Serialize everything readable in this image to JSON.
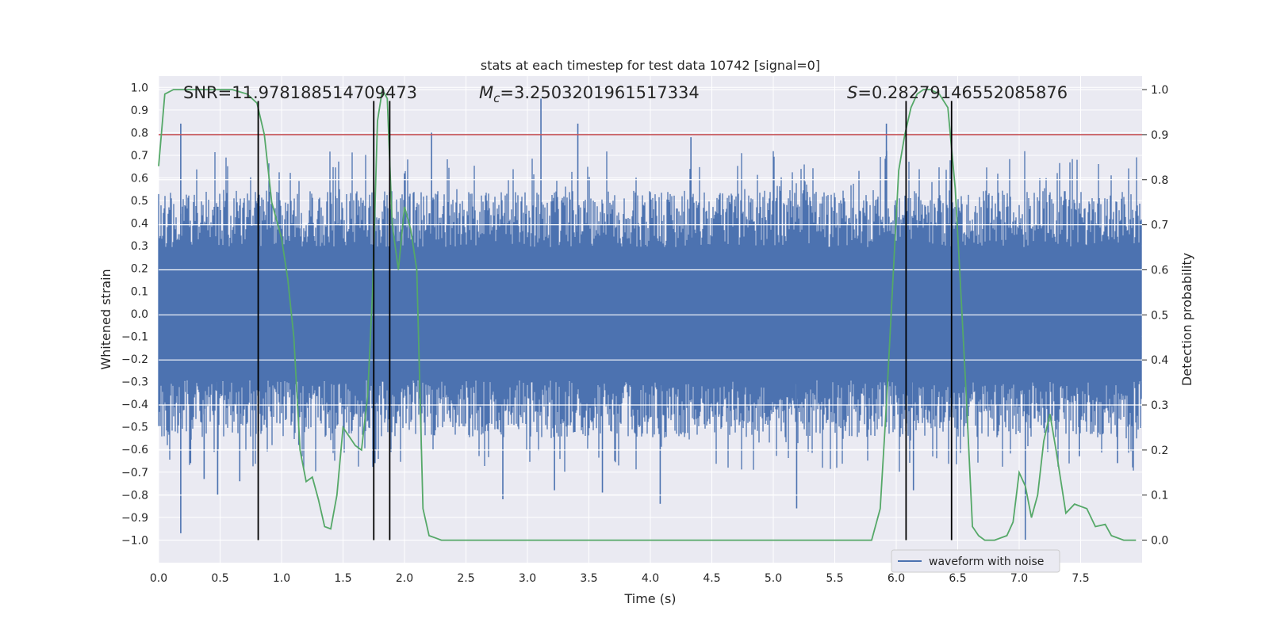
{
  "chart_data": {
    "type": "line",
    "title": "stats at each timestep for test data 10742 [signal=0]",
    "xlabel": "Time (s)",
    "ylabel": "Whitened strain",
    "ylabel_right": "Detection probability",
    "xlim": [
      0.0,
      8.0
    ],
    "ylim": [
      -1.1,
      1.05
    ],
    "ylim_right": [
      -0.05,
      1.03
    ],
    "x_ticks": [
      "0.0",
      "0.5",
      "1.0",
      "1.5",
      "2.0",
      "2.5",
      "3.0",
      "3.5",
      "4.0",
      "4.5",
      "5.0",
      "5.5",
      "6.0",
      "6.5",
      "7.0",
      "7.5"
    ],
    "y_ticks": [
      "1.0",
      "0.9",
      "0.8",
      "0.7",
      "0.6",
      "0.5",
      "0.4",
      "0.3",
      "0.2",
      "0.1",
      "0.0",
      "-0.1",
      "-0.2",
      "-0.3",
      "-0.4",
      "-0.5",
      "-0.6",
      "-0.7",
      "-0.8",
      "-0.9",
      "-1.0"
    ],
    "y_right_ticks": [
      "1.0",
      "0.9",
      "0.8",
      "0.7",
      "0.6",
      "0.5",
      "0.4",
      "0.3",
      "0.2",
      "0.1",
      "0.0"
    ],
    "annotations": {
      "snr": "SNR=11.978188514709473",
      "mc_symbol": "M",
      "mc_sub": "c",
      "mc_value": "=3.2503201961517334",
      "s_symbol": "S",
      "s_value": "=0.28279146552085876"
    },
    "legend": {
      "label": "waveform with noise",
      "location": "lower-right"
    },
    "threshold": {
      "value": 0.9,
      "axis": "right",
      "color": "#c44e52"
    },
    "vertical_lines": [
      0.81,
      1.75,
      1.88,
      6.08,
      6.45
    ],
    "vertical_line_range": [
      -1.0,
      0.94
    ],
    "waveform": {
      "name": "waveform with noise",
      "color": "#4c72b0",
      "typical_amplitude": 0.42,
      "spikes": [
        {
          "x": 0.18,
          "y": 0.84
        },
        {
          "x": 0.18,
          "y": -0.97
        },
        {
          "x": 0.26,
          "y": -0.66
        },
        {
          "x": 0.37,
          "y": -0.73
        },
        {
          "x": 0.48,
          "y": -0.8
        },
        {
          "x": 0.66,
          "y": -0.74
        },
        {
          "x": 1.14,
          "y": -0.58
        },
        {
          "x": 1.44,
          "y": 0.52
        },
        {
          "x": 1.75,
          "y": 0.82
        },
        {
          "x": 1.76,
          "y": -0.66
        },
        {
          "x": 2.0,
          "y": 0.62
        },
        {
          "x": 2.22,
          "y": 0.8
        },
        {
          "x": 2.8,
          "y": -0.82
        },
        {
          "x": 3.11,
          "y": 0.95
        },
        {
          "x": 3.22,
          "y": -0.78
        },
        {
          "x": 3.41,
          "y": 0.84
        },
        {
          "x": 3.61,
          "y": -0.79
        },
        {
          "x": 4.08,
          "y": -0.84
        },
        {
          "x": 4.33,
          "y": 0.78
        },
        {
          "x": 5.19,
          "y": -0.86
        },
        {
          "x": 5.92,
          "y": 0.84
        },
        {
          "x": 6.14,
          "y": -0.78
        },
        {
          "x": 7.05,
          "y": -1.0
        },
        {
          "x": 7.49,
          "y": -0.63
        },
        {
          "x": 7.8,
          "y": -0.66
        }
      ]
    },
    "detection_probability": {
      "name": "detection probability",
      "color": "#55a868",
      "axis": "right",
      "x": [
        0.0,
        0.05,
        0.12,
        0.2,
        0.3,
        0.45,
        0.6,
        0.72,
        0.8,
        0.86,
        0.92,
        1.0,
        1.05,
        1.1,
        1.15,
        1.2,
        1.25,
        1.3,
        1.35,
        1.4,
        1.45,
        1.5,
        1.55,
        1.6,
        1.65,
        1.7,
        1.74,
        1.78,
        1.82,
        1.86,
        1.9,
        1.95,
        2.0,
        2.05,
        2.1,
        2.15,
        2.2,
        2.25,
        2.3,
        2.4,
        2.5,
        2.6,
        2.7,
        2.8,
        2.9,
        3.0,
        3.2,
        3.4,
        3.6,
        3.8,
        4.0,
        4.2,
        4.4,
        4.6,
        4.8,
        5.0,
        5.2,
        5.4,
        5.6,
        5.8,
        5.87,
        5.92,
        5.97,
        6.02,
        6.07,
        6.12,
        6.17,
        6.22,
        6.28,
        6.35,
        6.42,
        6.48,
        6.52,
        6.57,
        6.62,
        6.67,
        6.72,
        6.8,
        6.9,
        6.95,
        7.0,
        7.05,
        7.1,
        7.15,
        7.2,
        7.25,
        7.3,
        7.38,
        7.45,
        7.55,
        7.62,
        7.7,
        7.75,
        7.85,
        7.95
      ],
      "y": [
        0.83,
        0.99,
        1.0,
        1.0,
        1.0,
        1.0,
        1.0,
        0.99,
        0.97,
        0.9,
        0.75,
        0.67,
        0.58,
        0.45,
        0.2,
        0.13,
        0.14,
        0.09,
        0.03,
        0.025,
        0.1,
        0.25,
        0.23,
        0.21,
        0.2,
        0.32,
        0.55,
        0.93,
        1.0,
        0.98,
        0.7,
        0.6,
        0.74,
        0.69,
        0.6,
        0.07,
        0.01,
        0.005,
        0.0,
        0.0,
        0.0,
        0.0,
        0.0,
        0.0,
        0.0,
        0.0,
        0.0,
        0.0,
        0.0,
        0.0,
        0.0,
        0.0,
        0.0,
        0.0,
        0.0,
        0.0,
        0.0,
        0.0,
        0.0,
        0.0,
        0.07,
        0.3,
        0.56,
        0.82,
        0.9,
        0.96,
        0.99,
        1.0,
        1.0,
        0.99,
        0.96,
        0.78,
        0.58,
        0.32,
        0.03,
        0.01,
        0.0,
        0.0,
        0.01,
        0.04,
        0.15,
        0.12,
        0.05,
        0.1,
        0.22,
        0.28,
        0.2,
        0.06,
        0.08,
        0.07,
        0.03,
        0.035,
        0.01,
        0.0,
        0.0
      ]
    }
  }
}
